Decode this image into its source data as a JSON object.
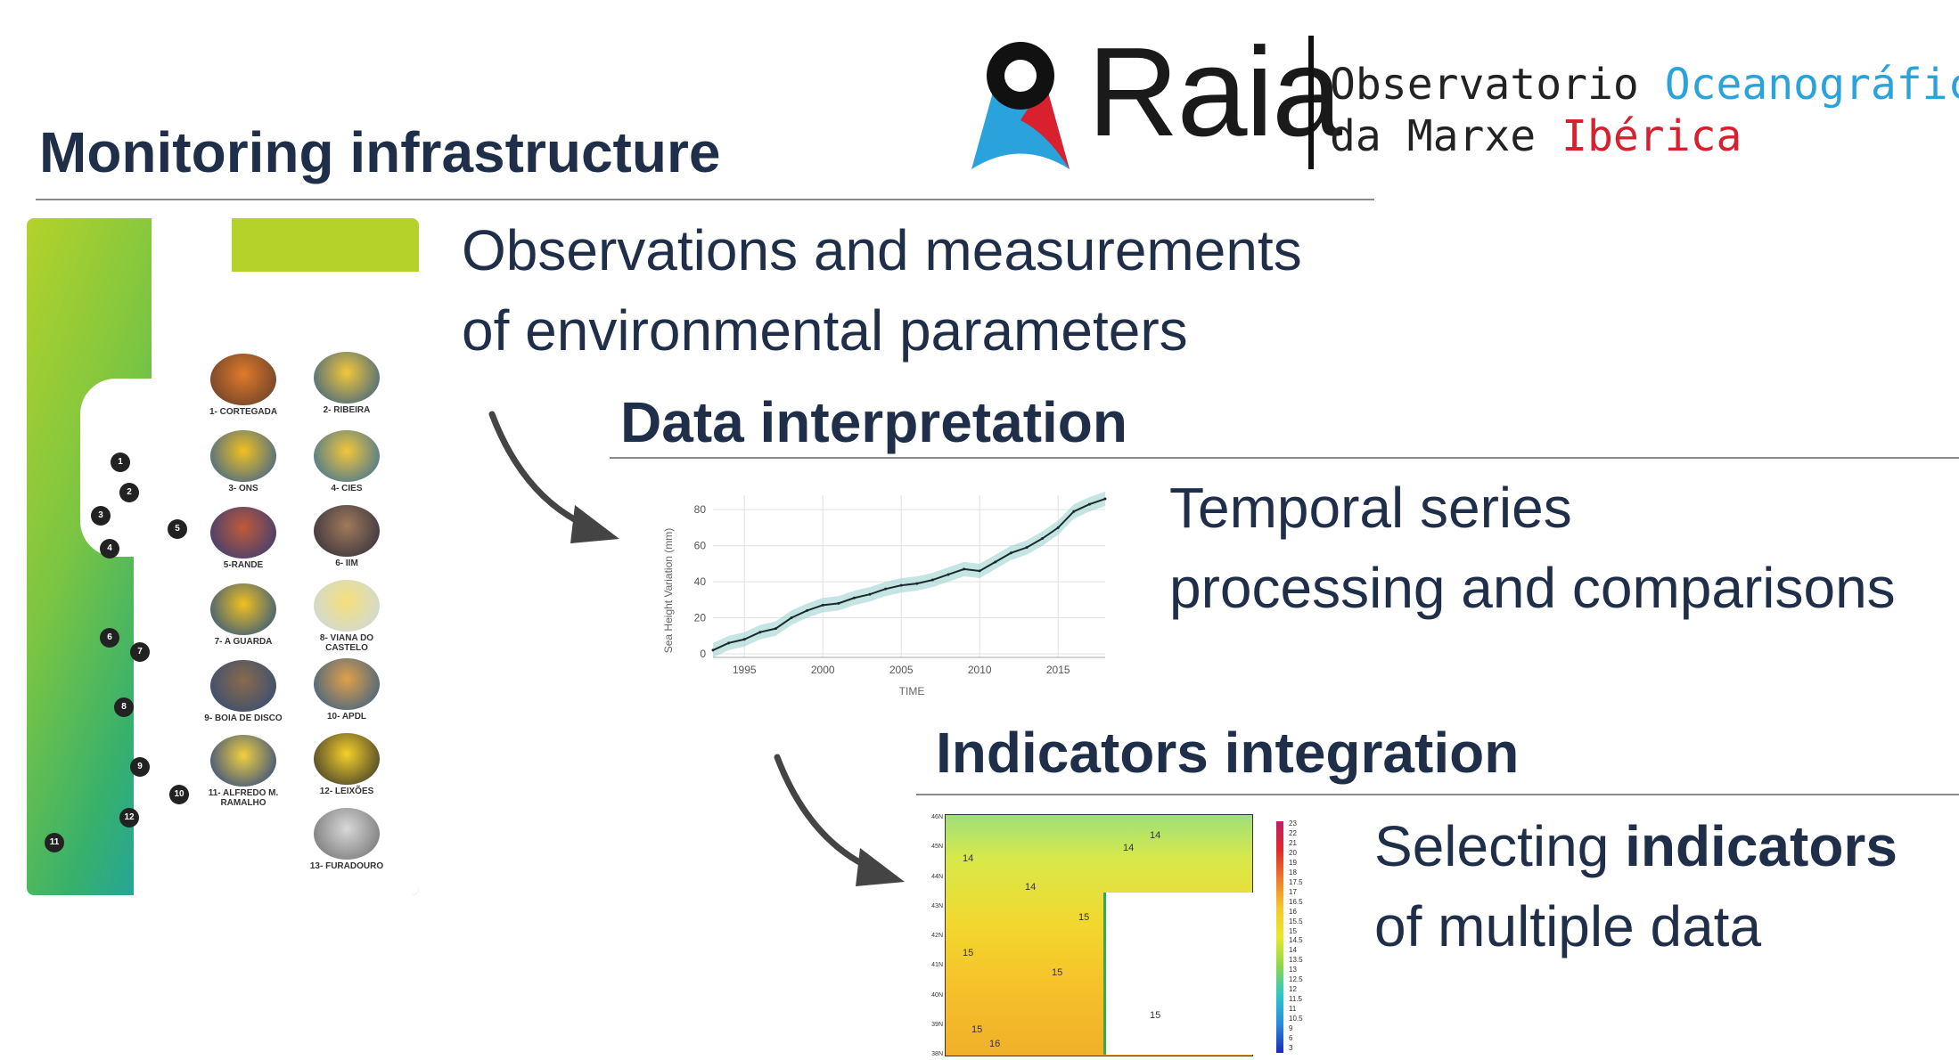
{
  "logo": {
    "wordmark": "Raia",
    "subtitle_line1_a": "Observatorio ",
    "subtitle_line1_b": "Oceanográfico",
    "subtitle_line2_a": "da Marxe ",
    "subtitle_line2_b": "Ibérica"
  },
  "sections": {
    "monitoring": {
      "title": "Monitoring infrastructure",
      "text_line1": "Observations and measurements",
      "text_line2": "of environmental parameters"
    },
    "interpretation": {
      "title": "Data interpretation",
      "text_line1": "Temporal series",
      "text_line2": "processing and comparisons"
    },
    "indicators": {
      "title": "Indicators integration",
      "text_line1_a": "Selecting ",
      "text_line1_b": "indicators",
      "text_line2": "of multiple data"
    }
  },
  "stations": [
    {
      "label": "1- CORTEGADA"
    },
    {
      "label": "2- RIBEIRA"
    },
    {
      "label": "3- ONS"
    },
    {
      "label": "4- CIES"
    },
    {
      "label": "5-RANDE"
    },
    {
      "label": "6- IIM"
    },
    {
      "label": "7- A GUARDA"
    },
    {
      "label": "8- VIANA DO CASTELO"
    },
    {
      "label": "9- BOIA DE DISCO"
    },
    {
      "label": "10- APDL"
    },
    {
      "label": "11- ALFREDO M. RAMALHO"
    },
    {
      "label": "12- LEIXÕES"
    },
    {
      "label": "13- FURADOURO"
    }
  ],
  "map_pins": [
    "1",
    "2",
    "3",
    "4",
    "5",
    "6",
    "7",
    "8",
    "9",
    "10",
    "11",
    "12"
  ],
  "colors": {
    "heading": "#1f2f4a",
    "accent_blue": "#2aa3dc",
    "accent_red": "#d8202e",
    "series_line": "#1a2a2a",
    "series_band": "#9fd4d4"
  },
  "chart_data": [
    {
      "type": "line",
      "title": "",
      "xlabel": "TIME",
      "ylabel": "Sea Height Variation (mm)",
      "x_ticks": [
        1995,
        2000,
        2005,
        2010,
        2015
      ],
      "y_ticks": [
        0,
        20,
        40,
        60,
        80
      ],
      "xlim": [
        1993,
        2018
      ],
      "ylim": [
        -2,
        88
      ],
      "grid": true,
      "series": [
        {
          "x": [
            1993,
            1994,
            1995,
            1996,
            1997,
            1998,
            1999,
            2000,
            2001,
            2002,
            2003,
            2004,
            2005,
            2006,
            2007,
            2008,
            2009,
            2010,
            2011,
            2012,
            2013,
            2014,
            2015,
            2016,
            2017,
            2018
          ],
          "y": [
            2,
            6,
            8,
            12,
            14,
            20,
            24,
            27,
            28,
            31,
            33,
            36,
            38,
            39,
            41,
            44,
            47,
            46,
            51,
            56,
            59,
            64,
            70,
            79,
            83,
            86
          ]
        }
      ]
    },
    {
      "type": "heatmap",
      "title": "",
      "y_ticks": [
        "38N",
        "39N",
        "40N",
        "41N",
        "42N",
        "43N",
        "44N",
        "45N",
        "46N"
      ],
      "colorbar_ticks": [
        "23",
        "22",
        "21",
        "20",
        "19",
        "18",
        "17.5",
        "17",
        "16.5",
        "16",
        "15.5",
        "15",
        "14.5",
        "14",
        "13.5",
        "13",
        "12.5",
        "12",
        "11.5",
        "11",
        "10.5",
        "9",
        "6",
        "3"
      ],
      "contour_labels": [
        "14",
        "14",
        "14",
        "14",
        "15",
        "15",
        "15",
        "15",
        "15",
        "16"
      ]
    }
  ]
}
